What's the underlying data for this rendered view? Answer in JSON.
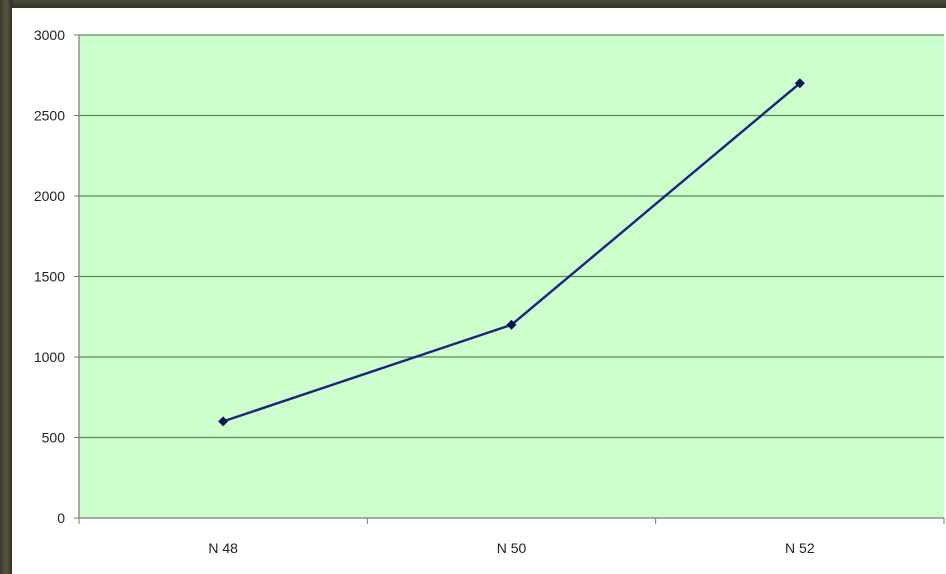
{
  "colors": {
    "plot_background": "#ccffcc",
    "gridline": "#5a8a5a",
    "series_line": "#1a237e",
    "marker": "#0d1456",
    "axis": "#7a7a7a"
  },
  "chart_data": {
    "type": "line",
    "title": "",
    "xlabel": "",
    "ylabel": "",
    "categories": [
      "N 48",
      "N 50",
      "N 52"
    ],
    "series": [
      {
        "values": [
          600,
          1200,
          2700
        ]
      }
    ],
    "ylim": [
      0,
      3000
    ],
    "yticks": [
      "0",
      "500",
      "1000",
      "1500",
      "2000",
      "2500",
      "3000"
    ],
    "grid": true,
    "legend": "none"
  }
}
